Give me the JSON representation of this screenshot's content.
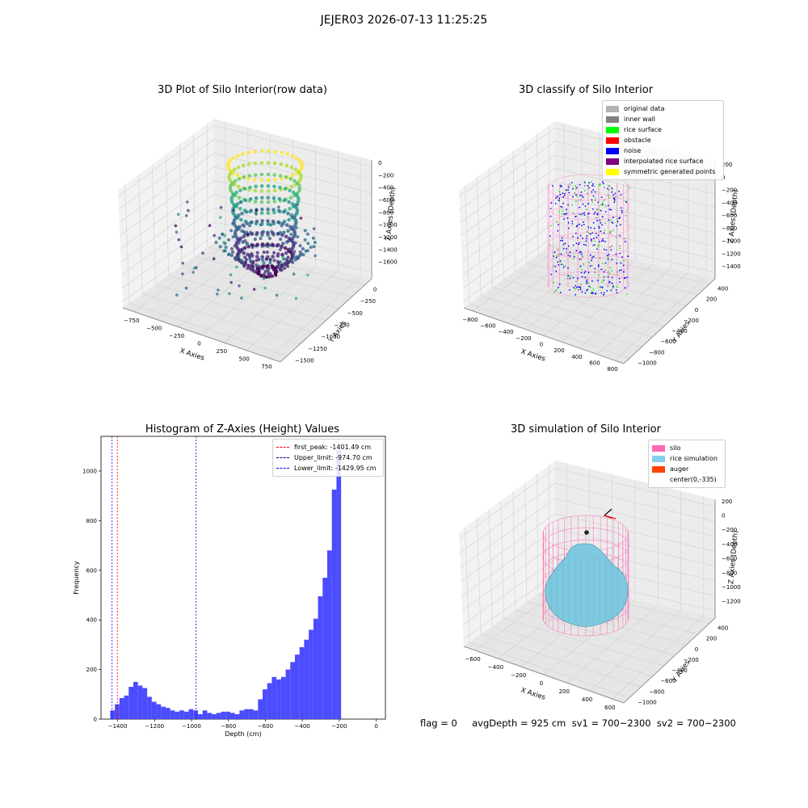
{
  "figure": {
    "suptitle": "JEJER03 2026-07-13 11:25:25",
    "flag_text": "flag = 0     avgDepth = 925 cm  sv1 = 700~2300  sv2 = 700~2300"
  },
  "chart_data": [
    {
      "type": "scatter",
      "title": "3D Plot of Silo Interior(row data)",
      "xlabel": "X Axies",
      "ylabel": "Y Axies",
      "zlabel": "Z Axies (Depth)",
      "x_ticks": [
        "−750",
        "−500",
        "−250",
        "0",
        "250",
        "500",
        "750"
      ],
      "y_ticks": [
        "0",
        "−250",
        "−500",
        "−750",
        "−1000",
        "−1250",
        "−1500"
      ],
      "z_ticks": [
        "0",
        "−200",
        "−400",
        "−600",
        "−800",
        "−1000",
        "−1200",
        "−1400",
        "−1600"
      ],
      "xlim": [
        -900,
        900
      ],
      "ylim": [
        -1500,
        100
      ],
      "zlim": [
        -1700,
        50
      ],
      "colormap": "viridis"
    },
    {
      "type": "scatter",
      "title": "3D classify of Silo Interior",
      "xlabel": "X Axies",
      "ylabel": "Y Axies",
      "zlabel": "Z Axies (Depth)",
      "x_ticks": [
        "−800",
        "−600",
        "−400",
        "−200",
        "0",
        "200",
        "400",
        "600",
        "800"
      ],
      "y_ticks": [
        "400",
        "200",
        "0",
        "−200",
        "−400",
        "−600",
        "−800",
        "−1000"
      ],
      "z_ticks": [
        "200",
        "0",
        "−200",
        "−400",
        "−600",
        "−800",
        "−1000",
        "−1200",
        "−1400"
      ],
      "legend": [
        {
          "label": "original data",
          "color": "#b3b3b3"
        },
        {
          "label": "inner wall",
          "color": "#808080"
        },
        {
          "label": "rice surface",
          "color": "#00ff00"
        },
        {
          "label": "obstacle",
          "color": "#ff0000"
        },
        {
          "label": "noise",
          "color": "#0000ff"
        },
        {
          "label": "interpolated rice surface",
          "color": "#800080"
        },
        {
          "label": "symmetric generated points",
          "color": "#ffff00"
        }
      ]
    },
    {
      "type": "bar",
      "title": "Histogram of Z-Axies (Height) Values",
      "xlabel": "Depth (cm)",
      "ylabel": "Frequency",
      "xlim": [
        -1490,
        50
      ],
      "ylim": [
        0,
        1140
      ],
      "x_ticks": [
        -1400,
        -1200,
        -1000,
        -800,
        -600,
        -400,
        -200,
        0
      ],
      "y_ticks": [
        0,
        200,
        400,
        600,
        800,
        1000
      ],
      "bar_color": "#4b4bff",
      "bin_start": -1440,
      "bin_width": 25,
      "values": [
        35,
        60,
        85,
        95,
        130,
        150,
        135,
        125,
        90,
        70,
        60,
        50,
        45,
        35,
        30,
        35,
        30,
        40,
        35,
        20,
        35,
        25,
        20,
        25,
        30,
        30,
        25,
        20,
        35,
        40,
        40,
        35,
        80,
        120,
        145,
        170,
        160,
        170,
        200,
        230,
        260,
        290,
        320,
        360,
        405,
        495,
        570,
        680,
        925,
        1085
      ],
      "vlines": [
        {
          "label": "first_peak: -1401.49 cm",
          "value": -1401.49,
          "color": "#ff0000"
        },
        {
          "label": "Upper_limit: -974.70 cm",
          "value": -974.7,
          "color": "#00008b"
        },
        {
          "label": "Lower_limit: -1429.95 cm",
          "value": -1429.95,
          "color": "#0000ff"
        }
      ],
      "legend_position": "top-right"
    },
    {
      "type": "area",
      "title": "3D simulation of Silo Interior",
      "xlabel": "X Axies",
      "ylabel": "Y Axies",
      "zlabel": "Z Axies (Depth)",
      "x_ticks": [
        "−600",
        "−400",
        "−200",
        "0",
        "200",
        "400",
        "600"
      ],
      "y_ticks": [
        "400",
        "200",
        "0",
        "−200",
        "−400",
        "−600",
        "−800",
        "−1000"
      ],
      "z_ticks": [
        "200",
        "0",
        "−200",
        "−400",
        "−600",
        "−800",
        "−1000",
        "−1200"
      ],
      "legend": [
        {
          "label": "silo",
          "color": "#ff69b4"
        },
        {
          "label": "rice simulation",
          "color": "#87ceeb"
        },
        {
          "label": "auger",
          "color": "#ff4500"
        },
        {
          "label": "center(0,-335)",
          "color": ""
        }
      ]
    }
  ]
}
